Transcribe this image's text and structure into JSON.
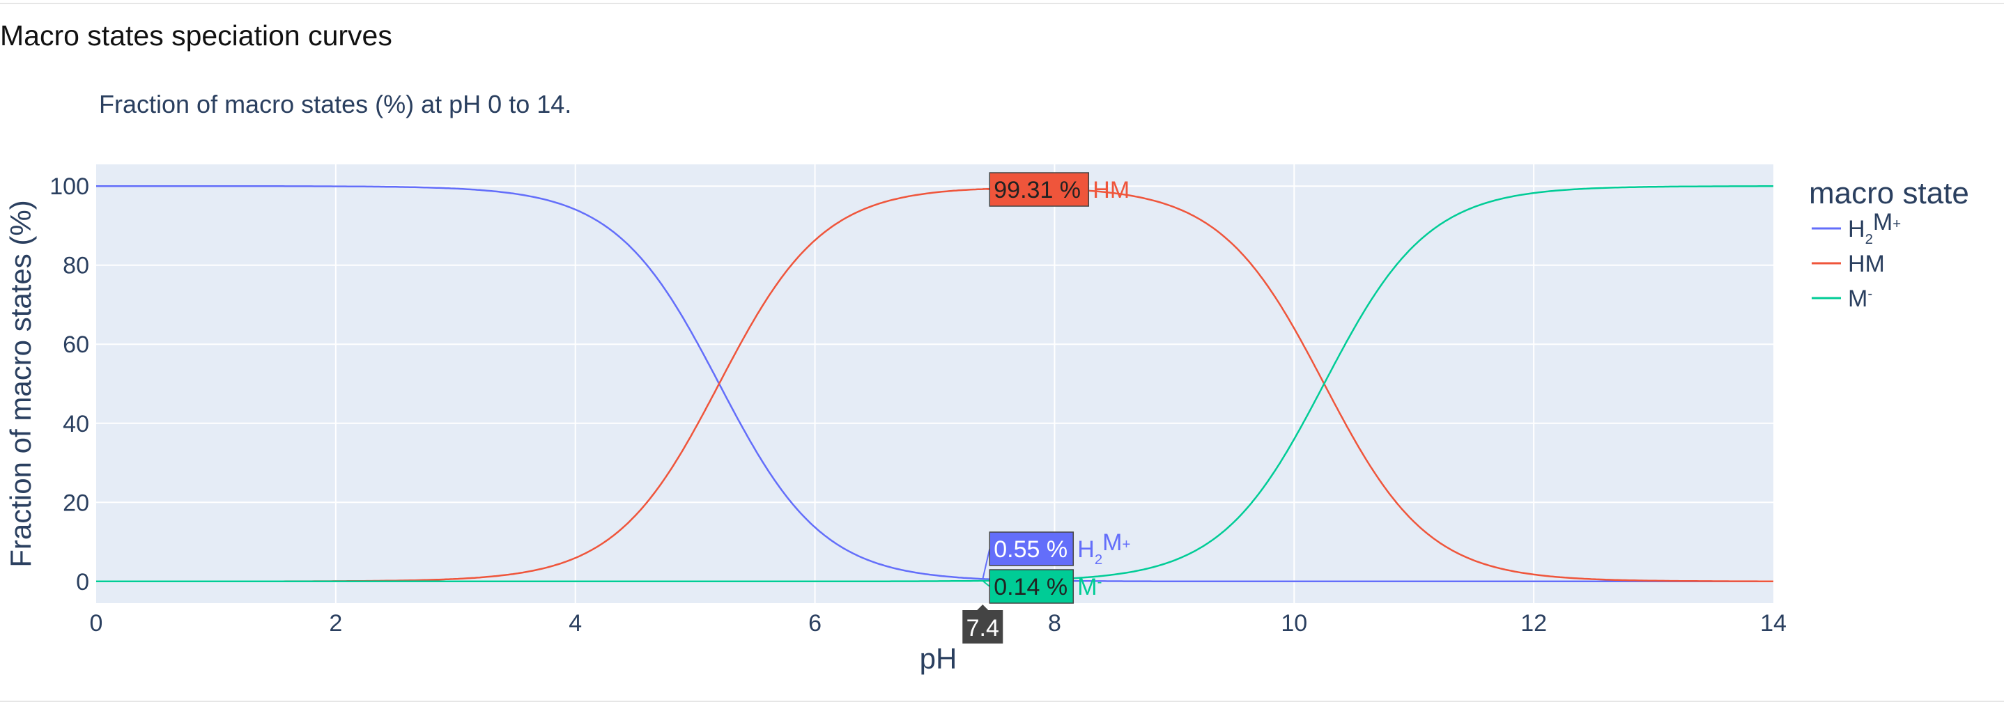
{
  "page": {
    "section_title": "Macro states speciation curves"
  },
  "chart_data": {
    "type": "line",
    "title": "Fraction of macro states (%) at pH 0 to 14.",
    "xlabel": "pH",
    "ylabel": "Fraction of macro states (%)",
    "xlim": [
      0,
      14
    ],
    "ylim": [
      -5.5,
      105.5
    ],
    "xticks": [
      0,
      2,
      4,
      6,
      8,
      10,
      12,
      14
    ],
    "yticks": [
      0,
      20,
      40,
      60,
      80,
      100
    ],
    "grid": true,
    "legend": {
      "title": "macro state",
      "position": "right"
    },
    "pKa": [
      5.2,
      10.25
    ],
    "series": [
      {
        "name": "H₂M⁺",
        "base": "H",
        "sub": "2",
        "mid": "M",
        "sup": "+",
        "color": "#636efa",
        "points": [
          [
            0,
            100
          ],
          [
            2,
            99.8
          ],
          [
            3,
            99
          ],
          [
            4,
            93.8
          ],
          [
            5,
            61.3
          ],
          [
            5.2,
            50
          ],
          [
            6,
            13.7
          ],
          [
            7,
            1.57
          ],
          [
            7.4,
            0.55
          ],
          [
            8,
            0.16
          ],
          [
            10,
            0
          ],
          [
            14,
            0
          ]
        ]
      },
      {
        "name": "HM",
        "base": "HM",
        "sub": "",
        "mid": "",
        "sup": "",
        "color": "#ef553b",
        "points": [
          [
            0,
            0
          ],
          [
            2,
            0.1
          ],
          [
            3,
            0.6
          ],
          [
            4,
            6.2
          ],
          [
            5,
            38.7
          ],
          [
            5.2,
            49.8
          ],
          [
            6,
            86.3
          ],
          [
            7,
            98.4
          ],
          [
            7.4,
            99.31
          ],
          [
            8,
            99.4
          ],
          [
            9,
            97.5
          ],
          [
            10,
            64
          ],
          [
            10.25,
            50
          ],
          [
            11,
            15
          ],
          [
            12,
            1.7
          ],
          [
            13,
            0.2
          ],
          [
            14,
            0
          ]
        ]
      },
      {
        "name": "M⁻",
        "base": "M",
        "sub": "",
        "mid": "",
        "sup": "-",
        "color": "#00cc96",
        "points": [
          [
            0,
            0
          ],
          [
            7,
            0.05
          ],
          [
            7.4,
            0.14
          ],
          [
            8,
            0.6
          ],
          [
            9,
            2.5
          ],
          [
            10,
            36
          ],
          [
            10.25,
            50
          ],
          [
            11,
            85
          ],
          [
            12,
            98.2
          ],
          [
            13,
            99.8
          ],
          [
            14,
            100
          ]
        ]
      }
    ],
    "hover": {
      "x": 7.4,
      "x_label": "7.4",
      "items": [
        {
          "series": 1,
          "value": 99.31,
          "text": "99.31 %"
        },
        {
          "series": 0,
          "value": 0.55,
          "text": "0.55 %"
        },
        {
          "series": 2,
          "value": 0.14,
          "text": "0.14 %"
        }
      ]
    }
  }
}
